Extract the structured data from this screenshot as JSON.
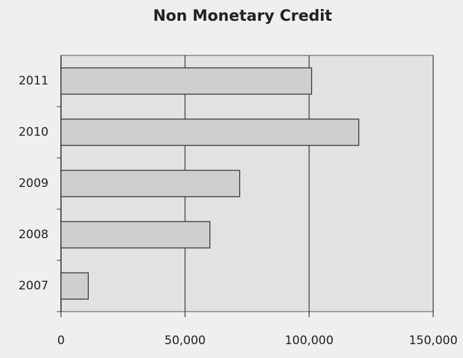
{
  "chart_data": {
    "type": "barh",
    "title": "Non Monetary Credit",
    "categories": [
      "2007",
      "2008",
      "2009",
      "2010",
      "2011"
    ],
    "values": [
      11000,
      60000,
      72000,
      120000,
      101000
    ],
    "color": "#cfcfcf",
    "xlim": [
      0,
      150000
    ],
    "xticks": [
      0,
      {
        "value": 50000,
        "label": "50,000"
      },
      {
        "value": 100000,
        "label": "100,000"
      },
      {
        "value": 150000,
        "label": "150,000"
      }
    ],
    "grid": true
  }
}
